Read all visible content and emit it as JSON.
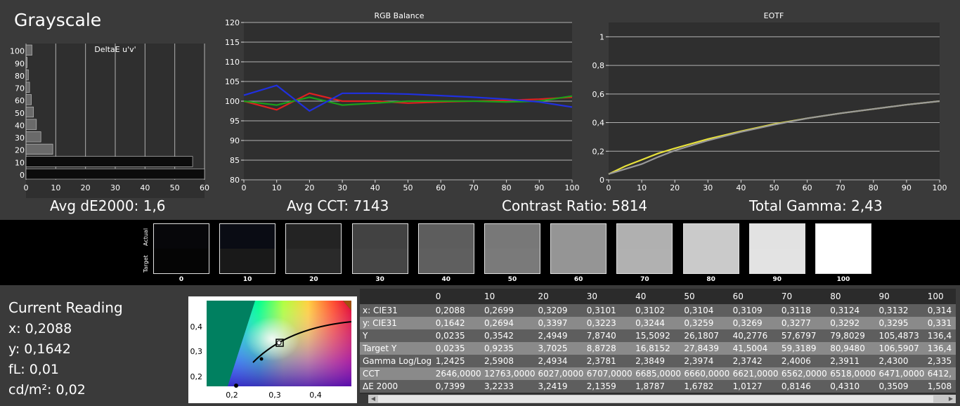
{
  "title": "Grayscale",
  "stats": {
    "avg_de": "Avg dE2000: 1,6",
    "avg_cct": "Avg CCT: 7143",
    "contrast": "Contrast Ratio: 5814",
    "gamma": "Total Gamma: 2,43"
  },
  "chart_data": [
    {
      "type": "bar",
      "orientation": "horizontal",
      "title": "DeltaE u'v'",
      "categories": [
        "0",
        "10",
        "20",
        "30",
        "40",
        "50",
        "60",
        "70",
        "80",
        "90",
        "100"
      ],
      "values": [
        60,
        56,
        9,
        5,
        3.5,
        2.5,
        1.8,
        1.2,
        0.8,
        0.4,
        2
      ],
      "xlim": [
        0,
        60
      ],
      "xticks": [
        "0",
        "10",
        "20",
        "30",
        "40",
        "50",
        "60"
      ]
    },
    {
      "type": "line",
      "title": "RGB Balance",
      "x": [
        0,
        10,
        20,
        30,
        40,
        50,
        60,
        70,
        80,
        90,
        100
      ],
      "series": [
        {
          "name": "Red",
          "color": "#e02020",
          "values": [
            100,
            97.8,
            102,
            100,
            100,
            99.5,
            99.8,
            100,
            100.2,
            100.5,
            101
          ]
        },
        {
          "name": "Green",
          "color": "#1aa01a",
          "values": [
            100,
            99,
            101,
            99,
            99.5,
            100,
            100,
            100,
            99.8,
            100,
            101.3
          ]
        },
        {
          "name": "Blue",
          "color": "#2030e0",
          "values": [
            101.5,
            104,
            97.5,
            102,
            102,
            101.8,
            101.4,
            101,
            100.5,
            99.8,
            98.5
          ]
        }
      ],
      "xlim": [
        0,
        100
      ],
      "ylim": [
        80,
        120
      ],
      "xticks": [
        "0",
        "10",
        "20",
        "30",
        "40",
        "50",
        "60",
        "70",
        "80",
        "90",
        "100"
      ],
      "yticks": [
        "80",
        "85",
        "90",
        "95",
        "100",
        "105",
        "110",
        "115",
        "120"
      ]
    },
    {
      "type": "line",
      "title": "EOTF",
      "x": [
        0,
        5,
        10,
        15,
        20,
        30,
        40,
        50,
        60,
        70,
        80,
        90,
        100
      ],
      "series": [
        {
          "name": "Measured",
          "color": "#e8e23a",
          "values": [
            0.04,
            0.095,
            0.14,
            0.185,
            0.22,
            0.285,
            0.34,
            0.39,
            0.43,
            0.465,
            0.495,
            0.525,
            0.55
          ]
        },
        {
          "name": "Target",
          "color": "#9a9a9a",
          "values": [
            0.04,
            0.075,
            0.11,
            0.16,
            0.205,
            0.275,
            0.335,
            0.385,
            0.43,
            0.465,
            0.495,
            0.525,
            0.55
          ]
        }
      ],
      "xlim": [
        0,
        100
      ],
      "ylim": [
        0,
        1.1
      ],
      "xticks": [
        "0",
        "10",
        "20",
        "30",
        "40",
        "50",
        "60",
        "70",
        "80",
        "90",
        "100"
      ],
      "yticks": [
        "0",
        "0,2",
        "0,4",
        "0,6",
        "0,8",
        "1"
      ]
    }
  ],
  "swatches": {
    "side_top": "Actual",
    "side_bottom": "Target",
    "items": [
      {
        "label": "0",
        "actual": "#07070a",
        "target": "#050505"
      },
      {
        "label": "10",
        "actual": "#0a0c14",
        "target": "#191919"
      },
      {
        "label": "20",
        "actual": "#232323",
        "target": "#2a2a2a"
      },
      {
        "label": "30",
        "actual": "#424242",
        "target": "#454545"
      },
      {
        "label": "40",
        "actual": "#5d5d5d",
        "target": "#5f5f5f"
      },
      {
        "label": "50",
        "actual": "#787878",
        "target": "#7a7a7a"
      },
      {
        "label": "60",
        "actual": "#959595",
        "target": "#959595"
      },
      {
        "label": "70",
        "actual": "#b0b0b0",
        "target": "#b1b1b1"
      },
      {
        "label": "80",
        "actual": "#cacaca",
        "target": "#cacaca"
      },
      {
        "label": "90",
        "actual": "#e2e2e2",
        "target": "#e3e3e3"
      },
      {
        "label": "100",
        "actual": "#ffffff",
        "target": "#ffffff"
      }
    ]
  },
  "reading": {
    "title": "Current Reading",
    "x": "x: 0,2088",
    "y": "y: 0,1642",
    "fl": "fL: 0,01",
    "cd": "cd/m²: 0,02"
  },
  "cie": {
    "xticks": [
      "0,2",
      "0,3",
      "0,4"
    ],
    "yticks": [
      "0,4",
      "0,3",
      "0,2"
    ]
  },
  "table": {
    "columns": [
      "",
      "0",
      "10",
      "20",
      "30",
      "40",
      "50",
      "60",
      "70",
      "80",
      "90",
      "100"
    ],
    "rows": [
      {
        "label": "x: CIE31",
        "values": [
          "0,2088",
          "0,2699",
          "0,3209",
          "0,3101",
          "0,3102",
          "0,3104",
          "0,3109",
          "0,3118",
          "0,3124",
          "0,3132",
          "0,314"
        ]
      },
      {
        "label": "y: CIE31",
        "values": [
          "0,1642",
          "0,2694",
          "0,3397",
          "0,3223",
          "0,3244",
          "0,3259",
          "0,3269",
          "0,3277",
          "0,3292",
          "0,3295",
          "0,331"
        ]
      },
      {
        "label": "Y",
        "values": [
          "0,0235",
          "0,3542",
          "2,4949",
          "7,8740",
          "15,5092",
          "26,1807",
          "40,2776",
          "57,6797",
          "79,8029",
          "105,4873",
          "136,4"
        ]
      },
      {
        "label": "Target Y",
        "values": [
          "0,0235",
          "0,9235",
          "3,7025",
          "8,8728",
          "16,8152",
          "27,8439",
          "41,5004",
          "59,3189",
          "80,9480",
          "106,5907",
          "136,4"
        ]
      },
      {
        "label": "Gamma Log/Log",
        "values": [
          "1,2425",
          "2,5908",
          "2,4934",
          "2,3781",
          "2,3849",
          "2,3974",
          "2,3742",
          "2,4006",
          "2,3911",
          "2,4300",
          "2,335"
        ]
      },
      {
        "label": "CCT",
        "values": [
          "2646,0000",
          "12763,0000",
          "6027,0000",
          "6707,0000",
          "6685,0000",
          "6660,0000",
          "6621,0000",
          "6562,0000",
          "6518,0000",
          "6471,0000",
          "6412,"
        ]
      },
      {
        "label": "ΔE 2000",
        "values": [
          "0,7399",
          "3,2233",
          "3,2419",
          "2,1359",
          "1,8787",
          "1,6782",
          "1,0127",
          "0,8146",
          "0,4310",
          "0,3509",
          "1,508"
        ]
      }
    ]
  }
}
